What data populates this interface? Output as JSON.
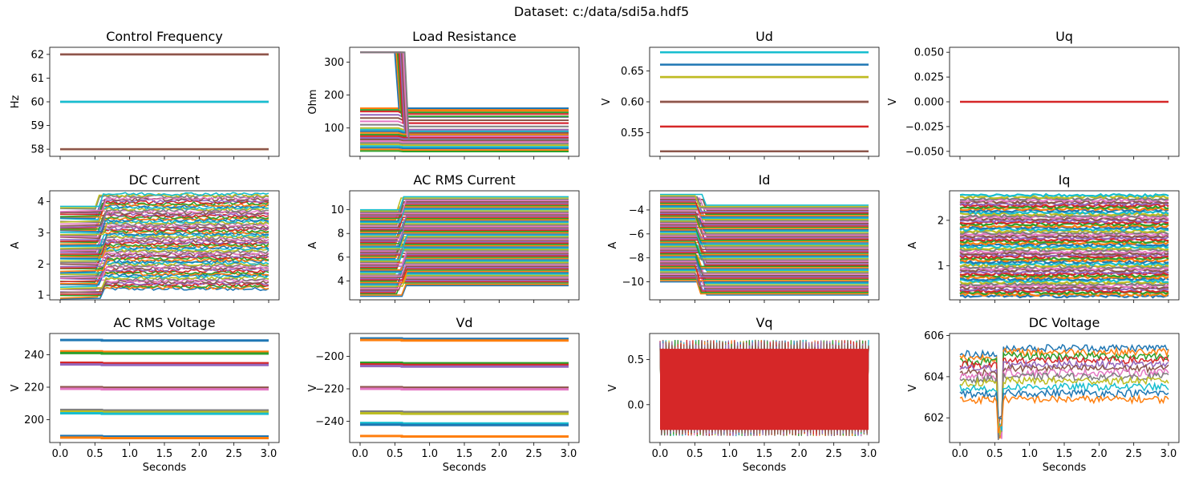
{
  "figure": {
    "suptitle": "Dataset: c:/data/sdi5a.hdf5",
    "x_label": "Seconds"
  },
  "chart_data": [
    {
      "id": "control-frequency",
      "type": "line",
      "title": "Control Frequency",
      "xlabel": "",
      "ylabel": "Hz",
      "xlim": [
        -0.15,
        3.15
      ],
      "ylim": [
        57.7,
        62.3
      ],
      "yticks": [
        58,
        59,
        60,
        61,
        62
      ],
      "series": [
        {
          "color": "#d62728",
          "values": [
            62,
            62
          ]
        },
        {
          "color": "#ff7f0e",
          "values": [
            58,
            58
          ]
        },
        {
          "color": "#1f77b4",
          "values": [
            60,
            60
          ]
        },
        {
          "color": "#17becf",
          "values": [
            60,
            60
          ]
        },
        {
          "color": "#8c564b",
          "values": [
            62,
            62
          ]
        },
        {
          "color": "#8c564b",
          "values": [
            58,
            58
          ]
        }
      ]
    },
    {
      "id": "load-resistance",
      "type": "line",
      "title": "Load Resistance",
      "xlabel": "",
      "ylabel": "Ohm",
      "xlim": [
        -0.15,
        3.15
      ],
      "ylim": [
        14,
        345
      ],
      "yticks": [
        100,
        200,
        300
      ],
      "levels": [
        330,
        160,
        155,
        150,
        140,
        130,
        120,
        110,
        100,
        95,
        90,
        85,
        80,
        75,
        70,
        65,
        60,
        55,
        50,
        45,
        40,
        35,
        30
      ],
      "step_to": [
        155,
        150,
        130,
        110,
        90,
        80,
        70,
        60,
        50,
        45,
        40,
        35,
        30,
        25
      ]
    },
    {
      "id": "ud",
      "type": "line",
      "title": "Ud",
      "xlabel": "",
      "ylabel": "V",
      "xlim": [
        -0.15,
        3.15
      ],
      "ylim": [
        0.512,
        0.688
      ],
      "yticks": [
        0.55,
        0.6,
        0.65
      ],
      "series": [
        {
          "color": "#17becf",
          "values": [
            0.68,
            0.68
          ]
        },
        {
          "color": "#1f77b4",
          "values": [
            0.66,
            0.66
          ]
        },
        {
          "color": "#ff7f0e",
          "values": [
            0.64,
            0.64
          ]
        },
        {
          "color": "#bcbd22",
          "values": [
            0.64,
            0.64
          ]
        },
        {
          "color": "#d62728",
          "values": [
            0.6,
            0.6
          ]
        },
        {
          "color": "#8c564b",
          "values": [
            0.6,
            0.6
          ]
        },
        {
          "color": "#d62728",
          "values": [
            0.56,
            0.56
          ]
        },
        {
          "color": "#8c564b",
          "values": [
            0.52,
            0.52
          ]
        }
      ]
    },
    {
      "id": "uq",
      "type": "line",
      "title": "Uq",
      "xlabel": "",
      "ylabel": "V",
      "xlim": [
        -0.15,
        3.15
      ],
      "ylim": [
        -0.055,
        0.055
      ],
      "yticks": [
        -0.05,
        -0.025,
        0.0,
        0.025,
        0.05
      ],
      "series": [
        {
          "color": "#d62728",
          "values": [
            0,
            0
          ]
        }
      ]
    },
    {
      "id": "dc-current",
      "type": "line",
      "title": "DC Current",
      "xlabel": "",
      "ylabel": "A",
      "xlim": [
        -0.15,
        3.15
      ],
      "ylim": [
        0.85,
        4.35
      ],
      "yticks": [
        1,
        2,
        3,
        4
      ],
      "before_range": [
        0.9,
        3.85
      ],
      "after_range": [
        1.2,
        4.25
      ],
      "step_time": 0.6
    },
    {
      "id": "ac-rms-current",
      "type": "line",
      "title": "AC RMS Current",
      "xlabel": "",
      "ylabel": "A",
      "xlim": [
        -0.15,
        3.15
      ],
      "ylim": [
        2.4,
        11.6
      ],
      "yticks": [
        4,
        6,
        8,
        10
      ],
      "before_range": [
        2.7,
        10.0
      ],
      "after_range": [
        3.6,
        11.1
      ],
      "step_time": 0.6
    },
    {
      "id": "id",
      "type": "line",
      "title": "Id",
      "xlabel": "",
      "ylabel": "A",
      "xlim": [
        -0.15,
        3.15
      ],
      "ylim": [
        -11.5,
        -2.4
      ],
      "yticks": [
        -10,
        -8,
        -6,
        -4
      ],
      "before_range": [
        -10.0,
        -2.7
      ],
      "after_range": [
        -11.1,
        -3.6
      ],
      "step_time": 0.6
    },
    {
      "id": "iq",
      "type": "line",
      "title": "Iq",
      "xlabel": "",
      "ylabel": "A",
      "xlim": [
        -0.15,
        3.15
      ],
      "ylim": [
        0.25,
        2.65
      ],
      "yticks": [
        1,
        2
      ],
      "band_range": [
        0.33,
        2.55
      ]
    },
    {
      "id": "ac-rms-voltage",
      "type": "line",
      "title": "AC RMS Voltage",
      "xlabel": "Seconds",
      "ylabel": "V",
      "xlim": [
        -0.15,
        3.15
      ],
      "ylim": [
        186,
        253
      ],
      "yticks": [
        200,
        220,
        240
      ],
      "levels": [
        249,
        242,
        241,
        235,
        234,
        220,
        219,
        206,
        205,
        204,
        190,
        189
      ]
    },
    {
      "id": "vd",
      "type": "line",
      "title": "Vd",
      "xlabel": "Seconds",
      "ylabel": "V",
      "xlim": [
        -0.15,
        3.15
      ],
      "ylim": [
        -253,
        -186
      ],
      "yticks": [
        -240,
        -220,
        -200
      ],
      "levels": [
        -189,
        -190,
        -204,
        -205,
        -206,
        -219,
        -220,
        -234,
        -235,
        -241,
        -242,
        -249
      ]
    },
    {
      "id": "vq",
      "type": "line",
      "title": "Vq",
      "xlabel": "Seconds",
      "ylabel": "V",
      "xlim": [
        -0.15,
        3.15
      ],
      "ylim": [
        -0.42,
        0.79
      ],
      "yticks": [
        0.0,
        0.5
      ],
      "band_range": [
        -0.35,
        0.72
      ]
    },
    {
      "id": "dc-voltage",
      "type": "line",
      "title": "DC Voltage",
      "xlabel": "Seconds",
      "ylabel": "V",
      "xlim": [
        -0.15,
        3.15
      ],
      "ylim": [
        600.8,
        606.1
      ],
      "yticks": [
        602,
        604,
        606
      ],
      "levels": [
        605.4,
        605.2,
        605.0,
        604.8,
        604.6,
        604.4,
        604.2,
        604.0,
        603.8,
        603.5,
        603.2,
        602.9
      ],
      "dip_time": 0.58,
      "dip_min": 600.9
    }
  ],
  "xticks": [
    0.0,
    0.5,
    1.0,
    1.5,
    2.0,
    2.5,
    3.0
  ],
  "palette": [
    "#1f77b4",
    "#ff7f0e",
    "#2ca02c",
    "#d62728",
    "#9467bd",
    "#8c564b",
    "#e377c2",
    "#7f7f7f",
    "#bcbd22",
    "#17becf"
  ]
}
